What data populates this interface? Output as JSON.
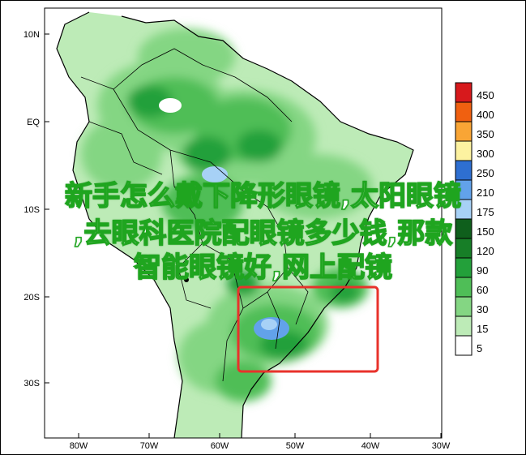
{
  "map": {
    "lat_labels": [
      "10N",
      "EQ",
      "10S",
      "20S",
      "30S"
    ],
    "lon_labels": [
      "80W",
      "70W",
      "60W",
      "50W",
      "40W",
      "30W"
    ]
  },
  "legend": {
    "levels": [
      {
        "label": "450",
        "color": "#d7191c"
      },
      {
        "label": "400",
        "color": "#f06010"
      },
      {
        "label": "350",
        "color": "#f9a535"
      },
      {
        "label": "300",
        "color": "#fdf2a0"
      },
      {
        "label": "250",
        "color": "#2e6fd1"
      },
      {
        "label": "210",
        "color": "#62a2ea"
      },
      {
        "label": "175",
        "color": "#a7d1f6"
      },
      {
        "label": "150",
        "color": "#0f5f1c"
      },
      {
        "label": "120",
        "color": "#177e27"
      },
      {
        "label": "90",
        "color": "#23a03a"
      },
      {
        "label": "60",
        "color": "#4fbe57"
      },
      {
        "label": "30",
        "color": "#84d683"
      },
      {
        "label": "15",
        "color": "#bdebb7"
      },
      {
        "label": "5",
        "color": "#ffffff"
      }
    ]
  },
  "overlay": {
    "line1": "新手怎么戴下降形眼镜,太阳眼镜",
    "line2": ",去眼科医院配眼镜多少钱,那款",
    "line3": "智能眼镜好,网上配镜"
  },
  "colors": {
    "highlight_box": "#e8322b",
    "frame": "#000000"
  }
}
